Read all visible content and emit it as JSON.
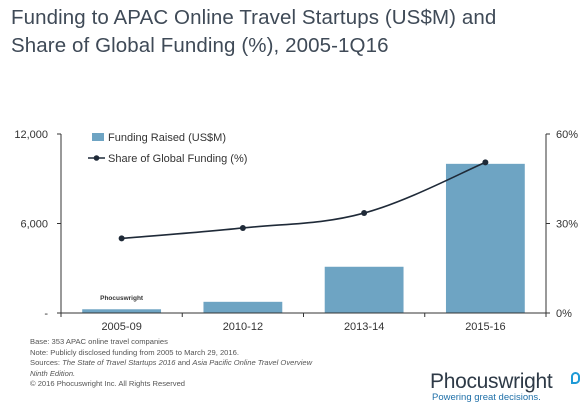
{
  "title_line1": "Funding to APAC Online Travel Startups (US$M) and",
  "title_line2": "Share of Global Funding (%), 2005-1Q16",
  "chart_data": {
    "type": "bar+line",
    "categories": [
      "2005-09",
      "2010-12",
      "2013-14",
      "2015-16"
    ],
    "series": [
      {
        "name": "Funding Raised (US$M)",
        "type": "bar",
        "axis": "left",
        "values": [
          250,
          750,
          3100,
          10000
        ],
        "color": "#6ea4c3"
      },
      {
        "name": "Share of Global Funding (%)",
        "type": "line",
        "axis": "right",
        "values": [
          25,
          28.5,
          33.5,
          50.5
        ],
        "color": "#1f2a38"
      }
    ],
    "y_left": {
      "min": 0,
      "max": 12000,
      "ticks": [
        0,
        6000,
        12000
      ],
      "tick_labels": [
        "-",
        "6,000",
        "12,000"
      ]
    },
    "y_right": {
      "min": 0,
      "max": 60,
      "ticks": [
        0,
        30,
        60
      ],
      "tick_labels": [
        "0%",
        "30%",
        "60%"
      ]
    },
    "legend_placement": "top-left",
    "grid": false,
    "watermark": "Phocuswright"
  },
  "footnotes": {
    "base": "Base: 353 APAC online travel companies",
    "note": "Note: Publicly disclosed funding from 2005 to March 29, 2016.",
    "sources_prefix": "Sources: ",
    "sources_title1": "The State of Travel Startups 2016",
    "sources_and": " and ",
    "sources_title2": "Asia Pacific Online Travel Overview",
    "sources_title2b": "Ninth Edition.",
    "copyright": "© 2016 Phocuswright Inc. All Rights Reserved"
  },
  "brand": {
    "name": "Phocuswright",
    "tagline": "Powering great decisions."
  }
}
